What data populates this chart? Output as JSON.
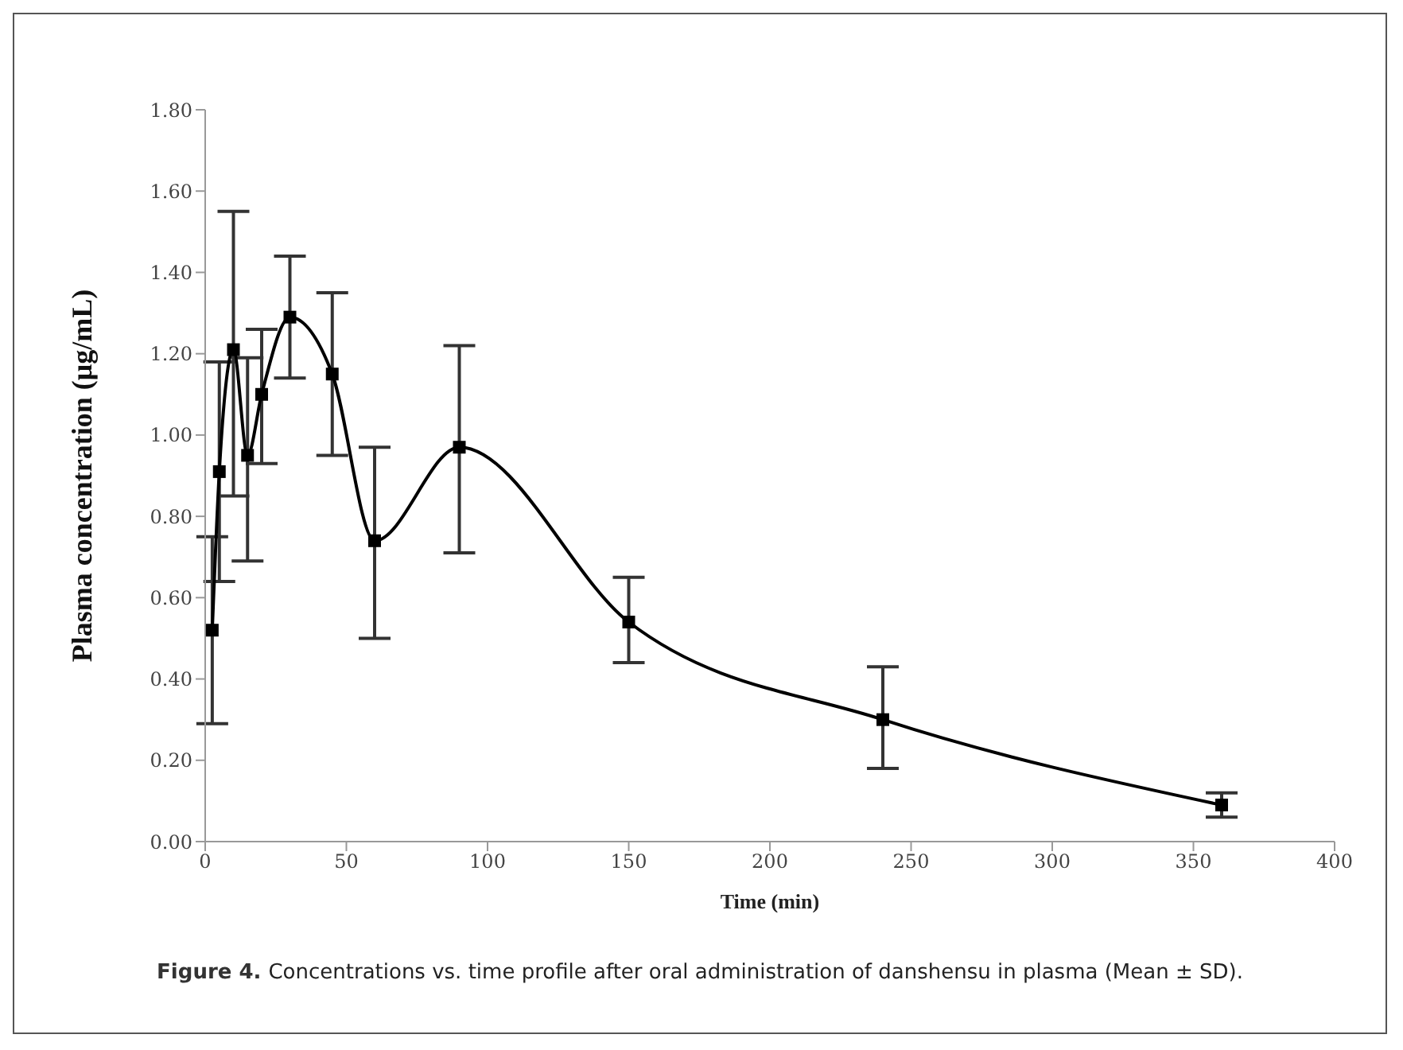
{
  "chart_data": {
    "type": "line",
    "xlabel": "Time (min)",
    "ylabel": "Plasma concentration (μg/mL)",
    "x": [
      2.5,
      5,
      10,
      15,
      20,
      30,
      45,
      60,
      90,
      150,
      240,
      360
    ],
    "series": [
      {
        "color": "#000000",
        "values": [
          0.52,
          0.91,
          1.21,
          0.95,
          1.1,
          1.29,
          1.15,
          0.74,
          0.97,
          0.54,
          0.3,
          0.09
        ],
        "errors": [
          [
            0.29,
            0.75
          ],
          [
            0.64,
            1.18
          ],
          [
            0.85,
            1.55
          ],
          [
            0.69,
            1.19
          ],
          [
            0.93,
            1.26
          ],
          [
            1.14,
            1.44
          ],
          [
            0.95,
            1.35
          ],
          [
            0.5,
            0.97
          ],
          [
            0.71,
            1.22
          ],
          [
            0.44,
            0.65
          ],
          [
            0.18,
            0.43
          ],
          [
            0.06,
            0.12
          ]
        ]
      }
    ],
    "xlim": [
      0,
      400
    ],
    "xticks": [
      0,
      50,
      100,
      150,
      200,
      250,
      300,
      350,
      400
    ],
    "ylim": [
      0,
      1.8
    ],
    "yticks": [
      {
        "value": 0,
        "label": "0.00"
      },
      {
        "value": 0.2,
        "label": "0.20"
      },
      {
        "value": 0.4,
        "label": "0.40"
      },
      {
        "value": 0.6,
        "label": "0.60"
      },
      {
        "value": 0.8,
        "label": "0.80"
      },
      {
        "value": 1.0,
        "label": "1.00"
      },
      {
        "value": 1.2,
        "label": "1.20"
      },
      {
        "value": 1.4,
        "label": "1.40"
      },
      {
        "value": 1.6,
        "label": "1.60"
      },
      {
        "value": 1.8,
        "label": "1.80"
      }
    ],
    "marker": "square",
    "line_style": "solid",
    "annotations": [
      "Figure 4.",
      "Concentrations vs. time profile after oral administration of danshensu in plasma (Mean ± SD)."
    ]
  }
}
